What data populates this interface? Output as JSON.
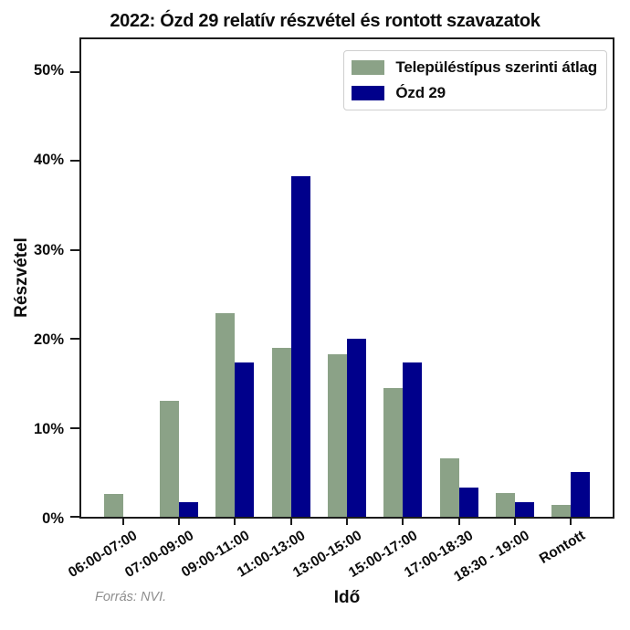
{
  "chart_data": {
    "type": "bar",
    "title": "2022: Ózd 29 relatív részvétel és rontott szavazatok",
    "xlabel": "Idő",
    "ylabel": "Részvétel",
    "source_note": "Forrás: NVI.",
    "categories": [
      "06:00-07:00",
      "07:00-09:00",
      "09:00-11:00",
      "11:00-13:00",
      "13:00-15:00",
      "15:00-17:00",
      "17:00-18:30",
      "18:30 - 19:00",
      "Rontott"
    ],
    "series": [
      {
        "name": "Településtípus szerinti átlag",
        "color": "#8BA287",
        "values": [
          2.6,
          13.0,
          22.9,
          19.0,
          18.3,
          14.5,
          6.6,
          2.7,
          1.3
        ]
      },
      {
        "name": "Ózd 29",
        "color": "#00008B",
        "values": [
          0.0,
          1.6,
          17.4,
          38.3,
          20.0,
          17.4,
          3.3,
          1.6,
          5.0
        ]
      }
    ],
    "unit": "%",
    "ylim": [
      0,
      53.7
    ],
    "yticks": [
      {
        "value": 0,
        "label": "0%"
      },
      {
        "value": 10,
        "label": "10%"
      },
      {
        "value": 20,
        "label": "20%"
      },
      {
        "value": 30,
        "label": "30%"
      },
      {
        "value": 40,
        "label": "40%"
      },
      {
        "value": 50,
        "label": "50%"
      }
    ],
    "grid": false,
    "legend_position": "upper right"
  }
}
